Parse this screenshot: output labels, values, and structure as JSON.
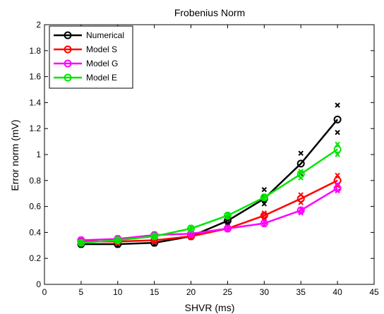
{
  "chart_data": {
    "type": "line",
    "title": "Frobenius Norm",
    "xlabel": "SHVR (ms)",
    "ylabel": "Error norm (mV)",
    "xlim": [
      0,
      45
    ],
    "ylim": [
      0,
      2
    ],
    "xticks": [
      0,
      5,
      10,
      15,
      20,
      25,
      30,
      35,
      40,
      45
    ],
    "yticks": [
      0,
      0.2,
      0.4,
      0.6,
      0.8,
      1,
      1.2,
      1.4,
      1.6,
      1.8,
      2
    ],
    "xtick_labels": [
      "0",
      "5",
      "10",
      "15",
      "20",
      "25",
      "30",
      "35",
      "40",
      "45"
    ],
    "ytick_labels": [
      "0",
      "0.2",
      "0.4",
      "0.6",
      "0.8",
      "1",
      "1.2",
      "1.4",
      "1.6",
      "1.8",
      "2"
    ],
    "grid": false,
    "legend_position": "top-left",
    "x": [
      5,
      10,
      15,
      20,
      25,
      30,
      35,
      40
    ],
    "series": [
      {
        "name": "Numerical",
        "color": "#000000",
        "values": [
          0.31,
          0.31,
          0.32,
          0.37,
          0.49,
          0.66,
          0.93,
          1.27
        ],
        "upper": [
          0.32,
          0.32,
          0.33,
          0.38,
          0.51,
          0.73,
          1.01,
          1.38
        ],
        "lower": [
          0.3,
          0.3,
          0.31,
          0.36,
          0.47,
          0.62,
          0.85,
          1.17
        ]
      },
      {
        "name": "Model S",
        "color": "#ff0000",
        "values": [
          0.33,
          0.33,
          0.34,
          0.37,
          0.43,
          0.53,
          0.66,
          0.8
        ],
        "upper": [
          0.34,
          0.34,
          0.35,
          0.38,
          0.44,
          0.55,
          0.69,
          0.84
        ],
        "lower": [
          0.32,
          0.32,
          0.33,
          0.36,
          0.42,
          0.51,
          0.63,
          0.76
        ]
      },
      {
        "name": "Model G",
        "color": "#ff00ff",
        "values": [
          0.34,
          0.35,
          0.38,
          0.39,
          0.43,
          0.47,
          0.57,
          0.74
        ],
        "upper": [
          0.35,
          0.36,
          0.39,
          0.4,
          0.44,
          0.48,
          0.58,
          0.77
        ],
        "lower": [
          0.33,
          0.34,
          0.37,
          0.38,
          0.42,
          0.46,
          0.55,
          0.72
        ]
      },
      {
        "name": "Model E",
        "color": "#00e600",
        "values": [
          0.32,
          0.34,
          0.37,
          0.43,
          0.53,
          0.67,
          0.85,
          1.04
        ],
        "upper": [
          0.33,
          0.35,
          0.38,
          0.44,
          0.54,
          0.68,
          0.87,
          1.08
        ],
        "lower": [
          0.31,
          0.33,
          0.36,
          0.42,
          0.52,
          0.66,
          0.82,
          1.0
        ]
      }
    ]
  }
}
